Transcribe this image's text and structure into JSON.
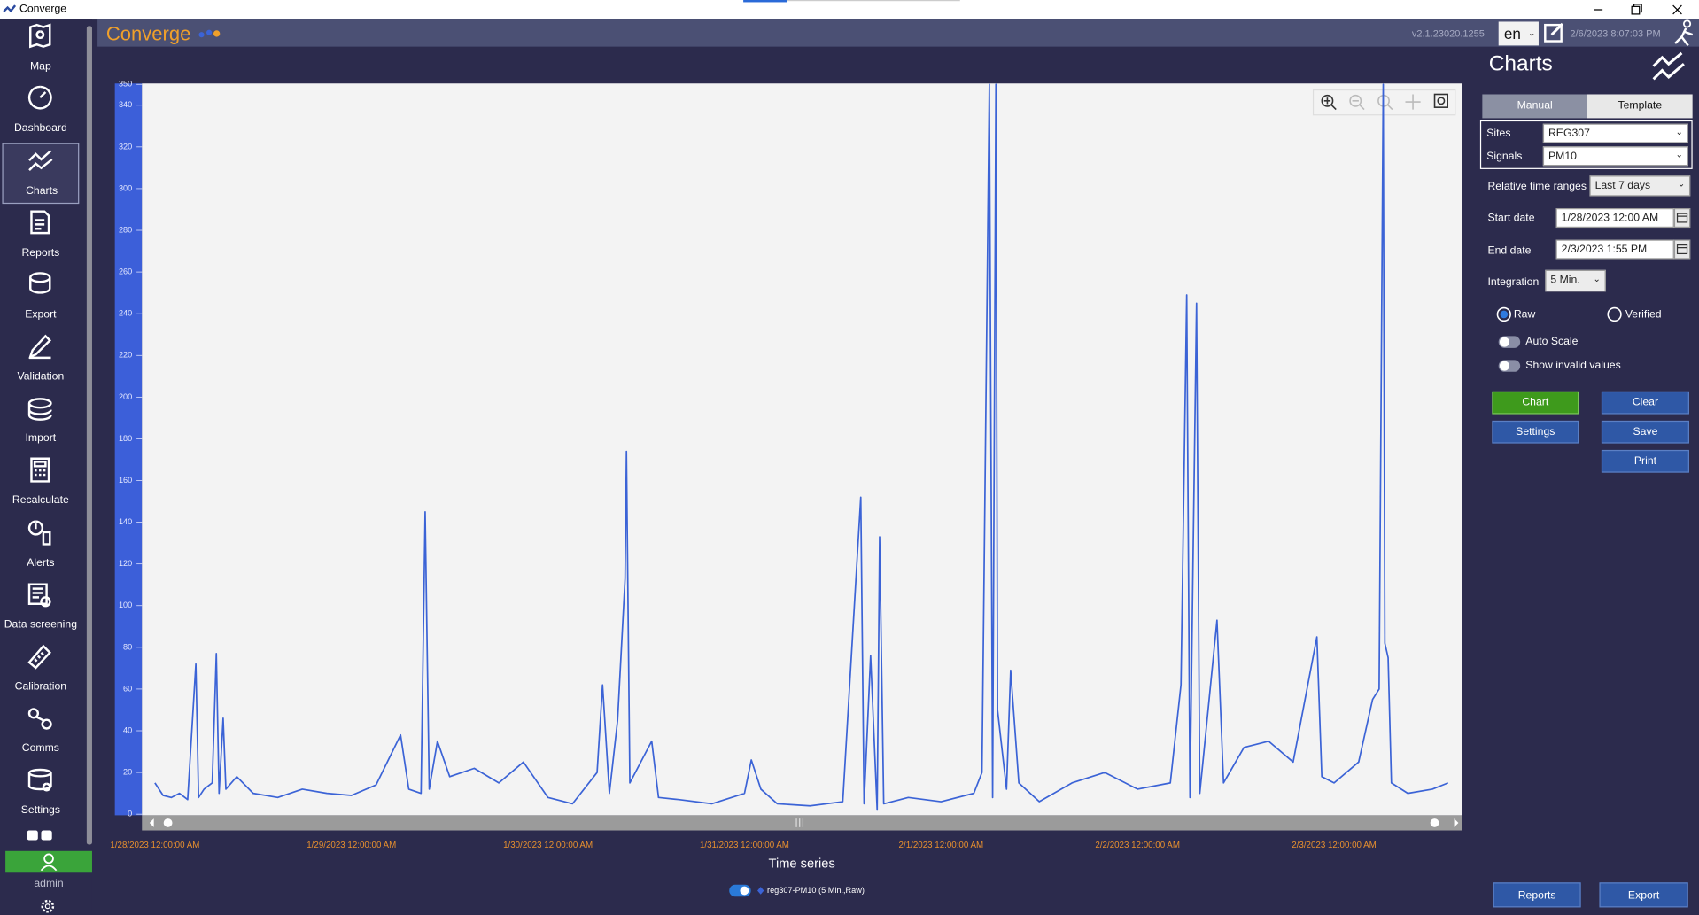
{
  "window": {
    "title": "Converge"
  },
  "header": {
    "brand": "Converge",
    "version": "v2.1.23020.1255",
    "language": "en",
    "datetime": "2/6/2023 8:07:03 PM"
  },
  "sidebar": {
    "items": [
      "Map",
      "Dashboard",
      "Charts",
      "Reports",
      "Export",
      "Validation",
      "Import",
      "Recalculate",
      "Alerts",
      "Data screening",
      "Calibration",
      "Comms",
      "Settings"
    ],
    "user": "admin"
  },
  "panel": {
    "title": "Charts",
    "tabs": [
      "Manual",
      "Template"
    ],
    "sites_label": "Sites",
    "sites_value": "REG307",
    "signals_label": "Signals",
    "signals_value": "PM10",
    "range_label": "Relative time ranges",
    "range_value": "Last 7 days",
    "start_label": "Start date",
    "start_value": "1/28/2023 12:00 AM",
    "end_label": "End date",
    "end_value": "2/3/2023 1:55 PM",
    "integration_label": "Integration",
    "integration_value": "5 Min.",
    "radios": [
      "Raw",
      "Verified"
    ],
    "toggles": [
      "Auto Scale",
      "Show invalid values"
    ],
    "buttons": {
      "chart": "Chart",
      "clear": "Clear",
      "settings": "Settings",
      "save": "Save",
      "print": "Print"
    },
    "bottom_buttons": [
      "Reports",
      "Export"
    ]
  },
  "chart_data": {
    "type": "line",
    "x_label": "Time series",
    "x": [
      "1/28/2023 12:00:00 AM",
      "1/28/2023 1:00:00 AM",
      "1/28/2023 2:00:00 AM",
      "1/28/2023 3:00:00 AM",
      "1/28/2023 4:00:00 AM",
      "1/28/2023 5:00:00 AM",
      "1/28/2023 5:20:00 AM",
      "1/28/2023 6:00:00 AM",
      "1/28/2023 7:00:00 AM",
      "1/28/2023 7:30:00 AM",
      "1/28/2023 7:50:00 AM",
      "1/28/2023 8:20:00 AM",
      "1/28/2023 8:40:00 AM",
      "1/28/2023 10:00:00 AM",
      "1/28/2023 12:00:00 PM",
      "1/28/2023 3:00:00 PM",
      "1/28/2023 6:00:00 PM",
      "1/28/2023 9:00:00 PM",
      "1/29/2023 12:00:00 AM",
      "1/29/2023 3:00:00 AM",
      "1/29/2023 6:00:00 AM",
      "1/29/2023 7:00:00 AM",
      "1/29/2023 8:30:00 AM",
      "1/29/2023 9:00:00 AM",
      "1/29/2023 9:30:00 AM",
      "1/29/2023 10:30:00 AM",
      "1/29/2023 12:00:00 PM",
      "1/29/2023 3:00:00 PM",
      "1/29/2023 6:00:00 PM",
      "1/29/2023 9:00:00 PM",
      "1/30/2023 12:00:00 AM",
      "1/30/2023 3:00:00 AM",
      "1/30/2023 6:00:00 AM",
      "1/30/2023 6:40:00 AM",
      "1/30/2023 7:30:00 AM",
      "1/30/2023 8:30:00 AM",
      "1/30/2023 9:25:00 AM",
      "1/30/2023 9:35:00 AM",
      "1/30/2023 10:00:00 AM",
      "1/30/2023 12:40:00 PM",
      "1/30/2023 1:30:00 PM",
      "1/30/2023 4:00:00 PM",
      "1/30/2023 8:00:00 PM",
      "1/31/2023 12:00:00 AM",
      "1/31/2023 12:50:00 AM",
      "1/31/2023 2:00:00 AM",
      "1/31/2023 4:00:00 AM",
      "1/31/2023 8:00:00 AM",
      "1/31/2023 12:00:00 PM",
      "1/31/2023 2:12:00 PM",
      "1/31/2023 2:36:00 PM",
      "1/31/2023 3:24:00 PM",
      "1/31/2023 4:12:00 PM",
      "1/31/2023 4:30:00 PM",
      "1/31/2023 5:00:00 PM",
      "1/31/2023 8:00:00 PM",
      "2/1/2023 12:00:00 AM",
      "2/1/2023 4:00:00 AM",
      "2/1/2023 5:00:00 AM",
      "2/1/2023 5:54:00 AM",
      "2/1/2023 6:18:00 AM",
      "2/1/2023 6:42:00 AM",
      "2/1/2023 6:54:00 AM",
      "2/1/2023 8:00:00 AM",
      "2/1/2023 8:30:00 AM",
      "2/1/2023 9:30:00 AM",
      "2/1/2023 12:00:00 PM",
      "2/1/2023 4:00:00 PM",
      "2/1/2023 8:00:00 PM",
      "2/2/2023 12:00:00 AM",
      "2/2/2023 4:00:00 AM",
      "2/2/2023 5:18:00 AM",
      "2/2/2023 6:00:00 AM",
      "2/2/2023 6:24:00 AM",
      "2/2/2023 6:48:00 AM",
      "2/2/2023 7:12:00 AM",
      "2/2/2023 7:36:00 AM",
      "2/2/2023 9:42:00 AM",
      "2/2/2023 10:30:00 AM",
      "2/2/2023 1:00:00 PM",
      "2/2/2023 4:00:00 PM",
      "2/2/2023 7:00:00 PM",
      "2/2/2023 9:54:00 PM",
      "2/2/2023 10:30:00 PM",
      "2/3/2023 12:00:00 AM",
      "2/3/2023 3:00:00 AM",
      "2/3/2023 4:42:00 AM",
      "2/3/2023 5:30:00 AM",
      "2/3/2023 6:00:00 AM",
      "2/3/2023 6:12:00 AM",
      "2/3/2023 6:36:00 AM",
      "2/3/2023 7:00:00 AM",
      "2/3/2023 9:00:00 AM",
      "2/3/2023 12:00:00 PM",
      "2/3/2023 1:55:00 PM"
    ],
    "series": [
      {
        "name": "reg307-PM10 (5 Min.,Raw)",
        "color": "#3b63d6",
        "values": [
          15,
          9,
          8,
          10,
          7,
          72,
          8,
          12,
          15,
          77,
          10,
          46,
          12,
          18,
          10,
          8,
          12,
          10,
          9,
          14,
          38,
          12,
          10,
          145,
          12,
          35,
          18,
          22,
          15,
          25,
          8,
          5,
          20,
          62,
          10,
          45,
          113,
          174,
          15,
          35,
          8,
          7,
          5,
          10,
          26,
          12,
          5,
          4,
          6,
          152,
          5,
          76,
          2,
          133,
          5,
          8,
          6,
          10,
          20,
          350,
          8,
          350,
          50,
          12,
          69,
          15,
          6,
          15,
          20,
          12,
          15,
          62,
          249,
          8,
          130,
          245,
          10,
          93,
          15,
          32,
          35,
          25,
          85,
          18,
          15,
          25,
          55,
          60,
          350,
          82,
          75,
          15,
          10,
          12,
          15
        ]
      }
    ],
    "xlim": [
      "1/27/2023 10:25:00 PM",
      "2/3/2023 3:35:00 PM"
    ],
    "xticks": [
      "1/28/2023 12:00:00 AM",
      "1/29/2023 12:00:00 AM",
      "1/30/2023 12:00:00 AM",
      "1/31/2023 12:00:00 AM",
      "2/1/2023 12:00:00 AM",
      "2/2/2023 12:00:00 AM",
      "2/3/2023 12:00:00 AM"
    ],
    "ylim": [
      0,
      350
    ],
    "yticks": [
      0,
      20,
      40,
      60,
      80,
      100,
      120,
      140,
      160,
      180,
      200,
      220,
      240,
      260,
      280,
      300,
      320,
      340,
      350
    ],
    "grid": false
  }
}
